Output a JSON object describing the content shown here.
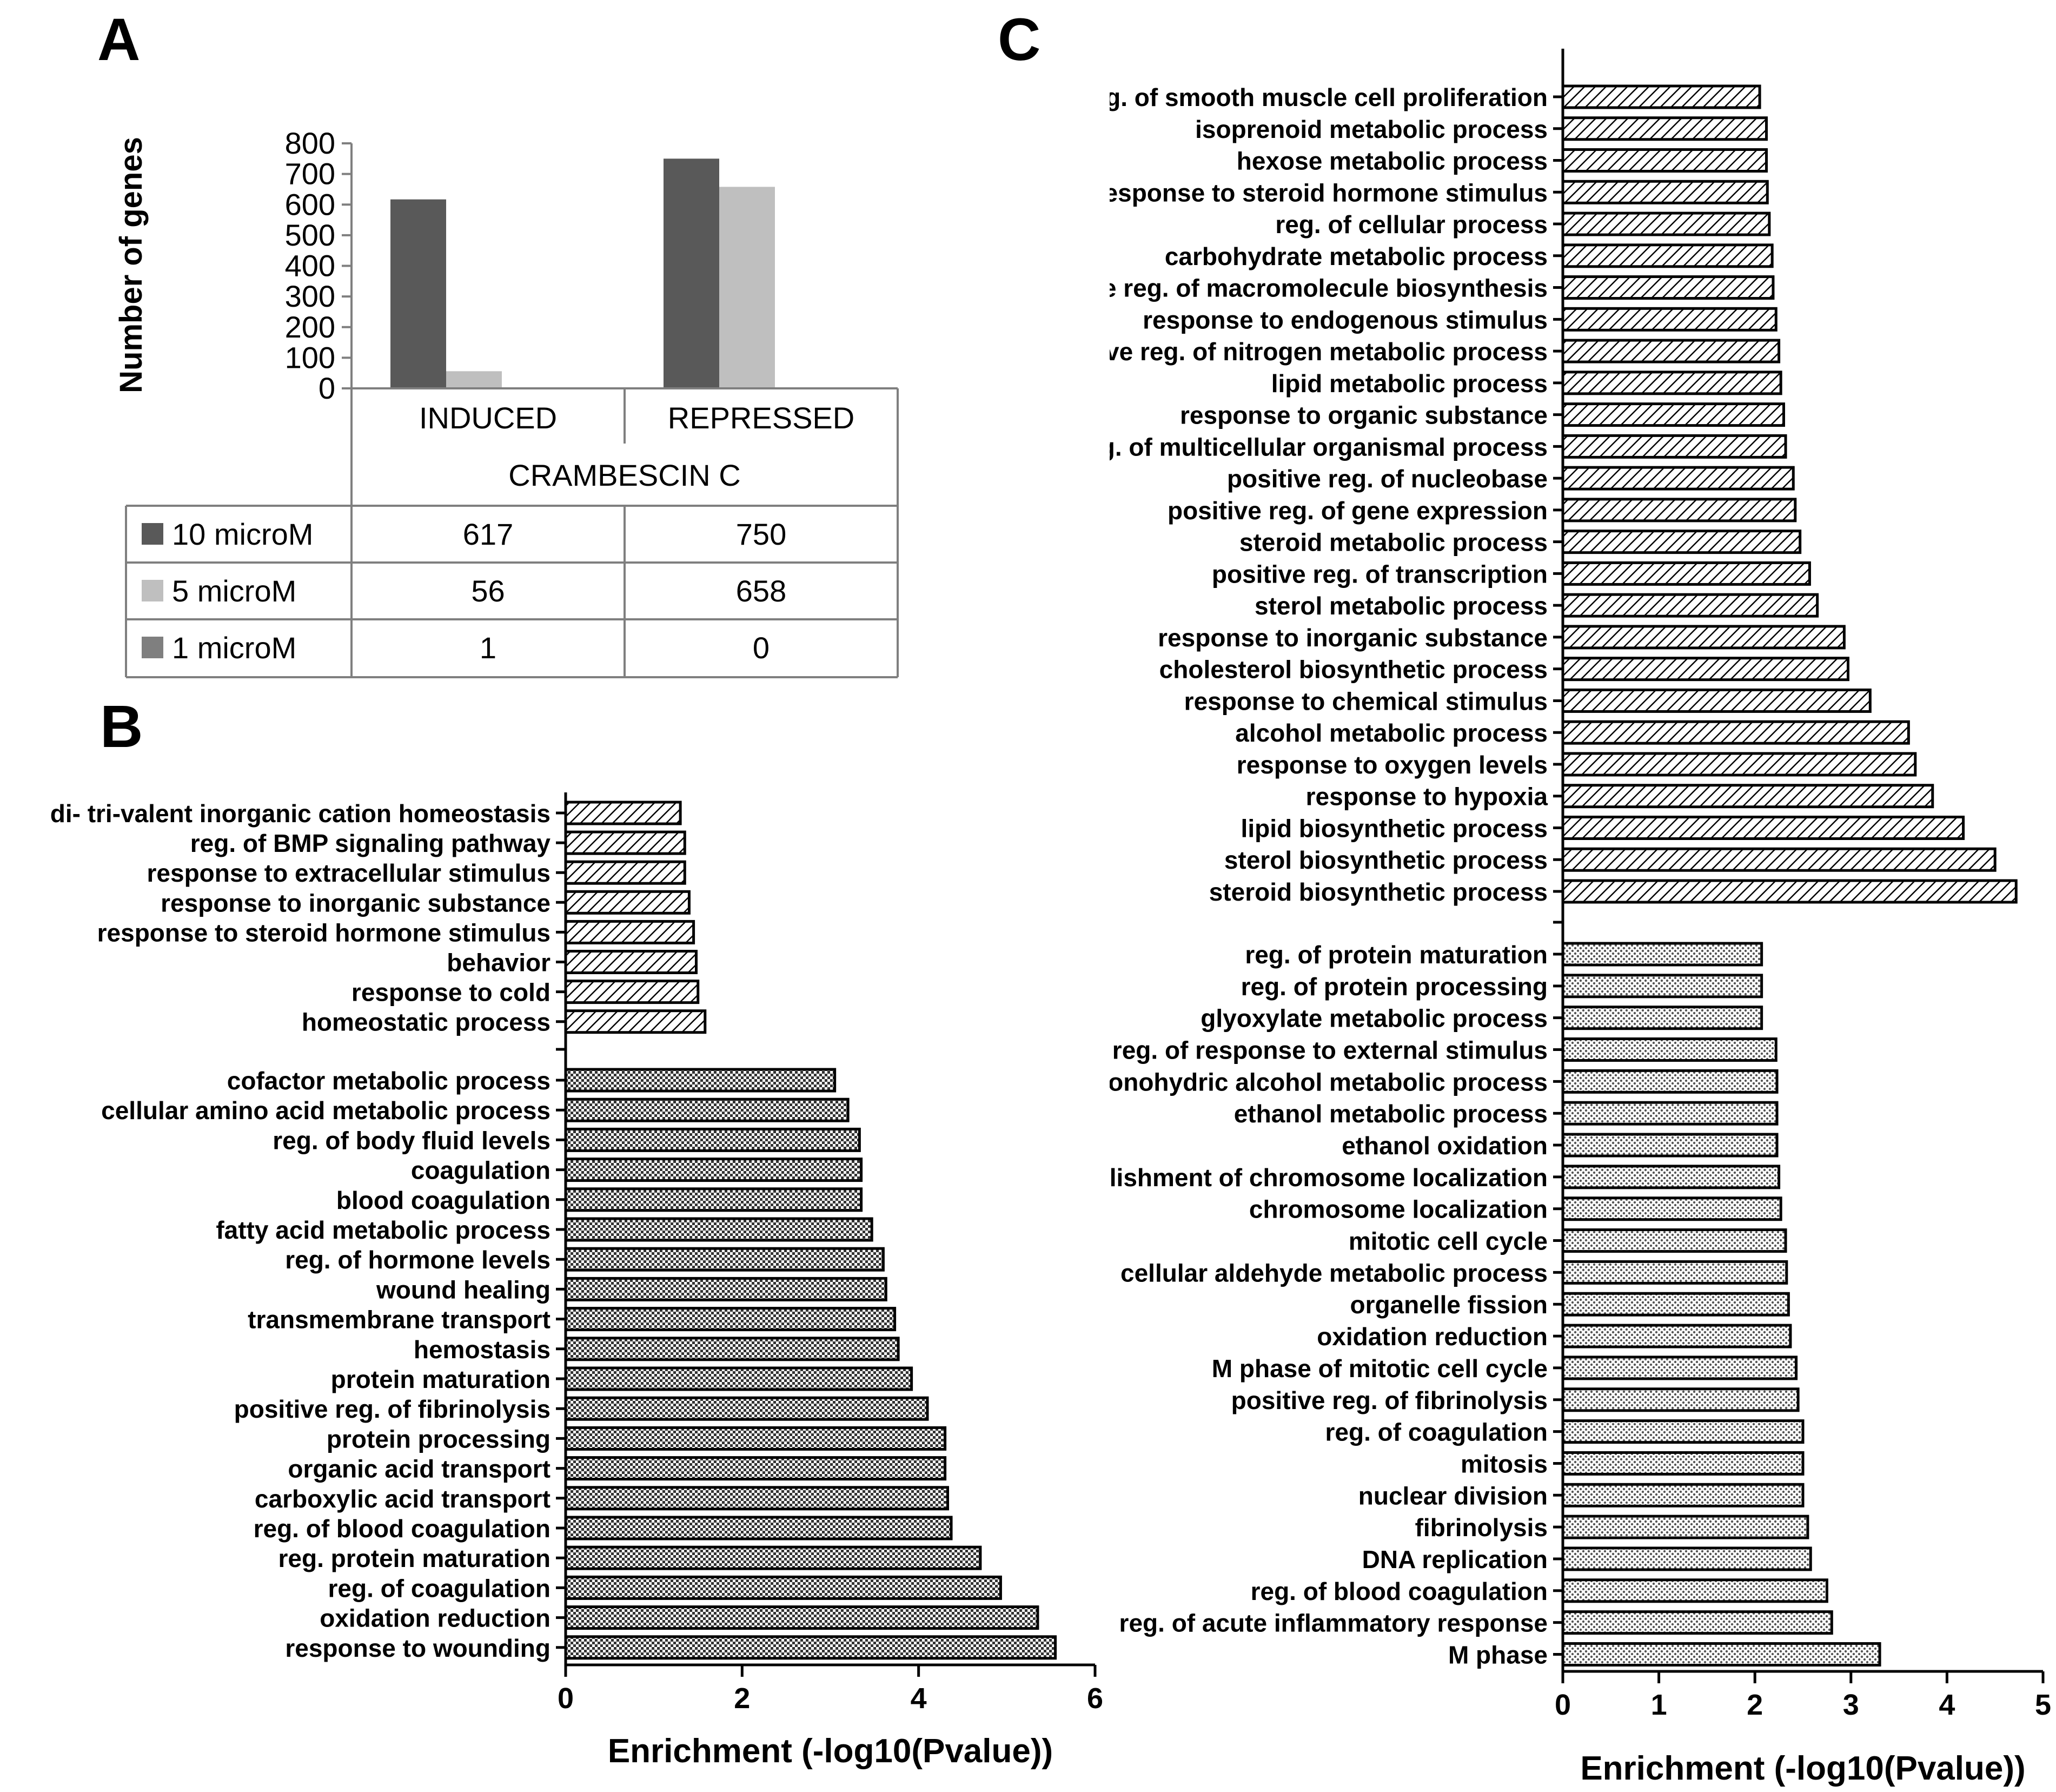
{
  "panels": {
    "a": "A",
    "b": "B",
    "c": "C"
  },
  "chart_data": [
    {
      "id": "A",
      "type": "bar",
      "ylabel": "Number of genes",
      "group_title": "CRAMBESCIN C",
      "categories": [
        "INDUCED",
        "REPRESSED"
      ],
      "yticks": [
        "0",
        "100",
        "200",
        "300",
        "400",
        "500",
        "600",
        "700",
        "800"
      ],
      "ylim": [
        0,
        800
      ],
      "series": [
        {
          "name": "10 microM",
          "color": "#595959",
          "values": [
            617,
            750
          ],
          "labels": [
            "617",
            "750"
          ]
        },
        {
          "name": "5 microM",
          "color": "#bfbfbf",
          "values": [
            56,
            658
          ],
          "labels": [
            "56",
            "658"
          ]
        },
        {
          "name": "1 microM",
          "color": "#7f7f7f",
          "values": [
            1,
            0
          ],
          "labels": [
            "1",
            "0"
          ]
        }
      ]
    },
    {
      "id": "B",
      "type": "bar",
      "orientation": "horizontal",
      "xlabel": "Enrichment (-log10(Pvalue))",
      "xlim": [
        0,
        6
      ],
      "xticks": [
        "0",
        "2",
        "4",
        "6"
      ],
      "groups": [
        {
          "pattern": "hatch",
          "items": [
            {
              "label": "di- tri-valent inorganic cation homeostasis",
              "value": 1.3
            },
            {
              "label": "reg. of BMP signaling pathway",
              "value": 1.35
            },
            {
              "label": "response to extracellular stimulus",
              "value": 1.35
            },
            {
              "label": "response to inorganic substance",
              "value": 1.4
            },
            {
              "label": "response to steroid hormone stimulus",
              "value": 1.45
            },
            {
              "label": "behavior",
              "value": 1.48
            },
            {
              "label": "response to cold",
              "value": 1.5
            },
            {
              "label": "homeostatic process",
              "value": 1.58
            }
          ]
        },
        {
          "pattern": "check",
          "items": [
            {
              "label": "cofactor metabolic process",
              "value": 3.05
            },
            {
              "label": "cellular amino acid metabolic process",
              "value": 3.2
            },
            {
              "label": "reg. of body fluid levels",
              "value": 3.33
            },
            {
              "label": "coagulation",
              "value": 3.35
            },
            {
              "label": "blood coagulation",
              "value": 3.35
            },
            {
              "label": "fatty acid metabolic process",
              "value": 3.47
            },
            {
              "label": "reg. of hormone levels",
              "value": 3.6
            },
            {
              "label": "wound healing",
              "value": 3.63
            },
            {
              "label": "transmembrane transport",
              "value": 3.73
            },
            {
              "label": "hemostasis",
              "value": 3.77
            },
            {
              "label": "protein maturation",
              "value": 3.92
            },
            {
              "label": "positive reg. of fibrinolysis",
              "value": 4.1
            },
            {
              "label": "protein processing",
              "value": 4.3
            },
            {
              "label": "organic acid transport",
              "value": 4.3
            },
            {
              "label": "carboxylic acid transport",
              "value": 4.33
            },
            {
              "label": "reg. of blood coagulation",
              "value": 4.37
            },
            {
              "label": "reg. protein maturation",
              "value": 4.7
            },
            {
              "label": "reg. of coagulation",
              "value": 4.93
            },
            {
              "label": "oxidation reduction",
              "value": 5.35
            },
            {
              "label": "response to wounding",
              "value": 5.55
            }
          ]
        }
      ]
    },
    {
      "id": "C",
      "type": "bar",
      "orientation": "horizontal",
      "xlabel": "Enrichment (-log10(Pvalue))",
      "xlim": [
        0,
        5
      ],
      "xticks": [
        "0",
        "1",
        "2",
        "3",
        "4",
        "5"
      ],
      "groups": [
        {
          "pattern": "hatch",
          "items": [
            {
              "label": "reg. of smooth muscle cell proliferation",
              "value": 2.05
            },
            {
              "label": "isoprenoid metabolic process",
              "value": 2.12
            },
            {
              "label": "hexose metabolic process",
              "value": 2.12
            },
            {
              "label": "response to steroid hormone stimulus",
              "value": 2.13
            },
            {
              "label": "reg. of cellular process",
              "value": 2.15
            },
            {
              "label": "carbohydrate metabolic process",
              "value": 2.18
            },
            {
              "label": "positive reg. of macromolecule biosynthesis",
              "value": 2.19
            },
            {
              "label": "response to endogenous stimulus",
              "value": 2.22
            },
            {
              "label": "positive reg. of nitrogen metabolic process",
              "value": 2.25
            },
            {
              "label": "lipid metabolic process",
              "value": 2.27
            },
            {
              "label": "response to organic substance",
              "value": 2.3
            },
            {
              "label": "reg. of multicellular organismal process",
              "value": 2.32
            },
            {
              "label": "positive reg. of nucleobase",
              "value": 2.4
            },
            {
              "label": "positive reg. of gene expression",
              "value": 2.42
            },
            {
              "label": "steroid metabolic process",
              "value": 2.47
            },
            {
              "label": "positive reg. of transcription",
              "value": 2.57
            },
            {
              "label": "sterol metabolic process",
              "value": 2.65
            },
            {
              "label": "response to inorganic substance",
              "value": 2.93
            },
            {
              "label": "cholesterol biosynthetic process",
              "value": 2.97
            },
            {
              "label": "response to chemical stimulus",
              "value": 3.2
            },
            {
              "label": "alcohol metabolic process",
              "value": 3.6
            },
            {
              "label": "response to oxygen levels",
              "value": 3.67
            },
            {
              "label": "response to hypoxia",
              "value": 3.85
            },
            {
              "label": "lipid biosynthetic process",
              "value": 4.17
            },
            {
              "label": "sterol biosynthetic process",
              "value": 4.5
            },
            {
              "label": "steroid biosynthetic process",
              "value": 4.72
            }
          ]
        },
        {
          "pattern": "dots",
          "items": [
            {
              "label": "reg. of protein maturation",
              "value": 2.07
            },
            {
              "label": "reg. of protein processing",
              "value": 2.07
            },
            {
              "label": "glyoxylate metabolic process",
              "value": 2.07
            },
            {
              "label": "reg. of response to external stimulus",
              "value": 2.22
            },
            {
              "label": "ıonohydric alcohol metabolic process",
              "value": 2.23
            },
            {
              "label": "ethanol metabolic process",
              "value": 2.23
            },
            {
              "label": "ethanol oxidation",
              "value": 2.23
            },
            {
              "label": "ɔlishment of chromosome localization",
              "value": 2.25
            },
            {
              "label": "chromosome localization",
              "value": 2.27
            },
            {
              "label": "mitotic cell cycle",
              "value": 2.32
            },
            {
              "label": "cellular aldehyde metabolic process",
              "value": 2.33
            },
            {
              "label": "organelle fission",
              "value": 2.35
            },
            {
              "label": "oxidation reduction",
              "value": 2.37
            },
            {
              "label": "M phase of mitotic cell cycle",
              "value": 2.43
            },
            {
              "label": "positive reg. of fibrinolysis",
              "value": 2.45
            },
            {
              "label": "reg. of coagulation",
              "value": 2.5
            },
            {
              "label": "mitosis",
              "value": 2.5
            },
            {
              "label": "nuclear division",
              "value": 2.5
            },
            {
              "label": "fibrinolysis",
              "value": 2.55
            },
            {
              "label": "DNA replication",
              "value": 2.58
            },
            {
              "label": "reg. of blood coagulation",
              "value": 2.75
            },
            {
              "label": "reg. of acute inflammatory response",
              "value": 2.8
            },
            {
              "label": "M phase",
              "value": 3.3
            }
          ]
        }
      ]
    }
  ]
}
